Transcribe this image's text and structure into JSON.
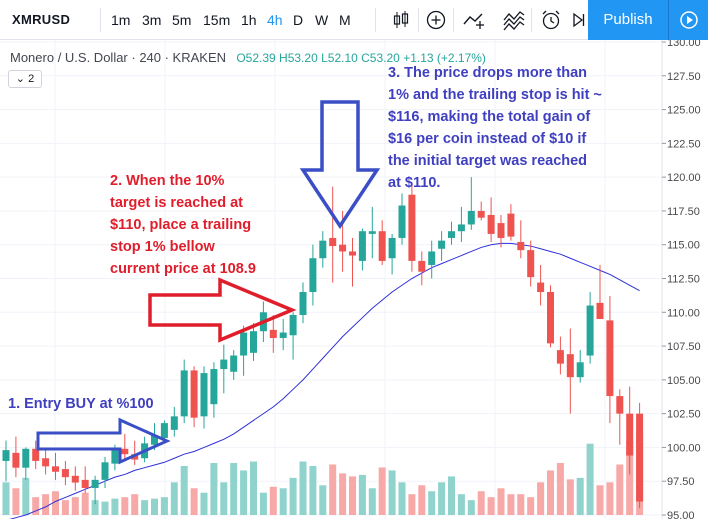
{
  "toolbar": {
    "symbol": "XMRUSD",
    "timeframes": [
      "1m",
      "3m",
      "5m",
      "15m",
      "1h",
      "4h",
      "D",
      "W",
      "M"
    ],
    "active_timeframe": "4h",
    "publish_label": "Publish",
    "icons": [
      "candles-icon",
      "add-indicator-icon",
      "compare-icon",
      "indicators-icon",
      "alert-icon",
      "replay-icon"
    ]
  },
  "legend": {
    "title": "Monero / U.S. Dollar · 240 · KRAKEN",
    "open": "O52.39",
    "high": "H53.20",
    "low": "L52.10",
    "close": "C53.20",
    "change": "+1.13 (+2.17%)",
    "collapse_label": "2"
  },
  "annotations": {
    "entry": [
      "1. Entry BUY at %100"
    ],
    "target": [
      "2. When the 10%",
      "target is reached at",
      "$110, place a trailing",
      "stop 1% bellow",
      "current price at 108.9"
    ],
    "stop": [
      "3. The price drops more than",
      "1% and the trailing stop is hit ~",
      "$116, making the total gain of",
      "$16 per coin instead of $10 if",
      "the initial target was reached",
      "at $110."
    ]
  },
  "colors": {
    "up": "#26a69a",
    "down": "#ef5350",
    "vol_up": "#8fd3cc",
    "vol_down": "#f7a9a8",
    "ma": "#2f2fd9",
    "arrow_blue": "#3a4fc5",
    "arrow_red": "#e01e2b",
    "accent": "#2196f3"
  },
  "chart_data": {
    "type": "candlestick",
    "y_ticks": [
      "130.00",
      "127.50",
      "125.00",
      "122.50",
      "120.00",
      "117.50",
      "115.00",
      "112.50",
      "110.00",
      "107.50",
      "105.00",
      "102.50",
      "100.00",
      "97.50",
      "95.00"
    ],
    "ylim": [
      95,
      130
    ],
    "candles": [
      {
        "o": 99.0,
        "h": 100.5,
        "l": 97.5,
        "c": 99.8
      },
      {
        "o": 99.6,
        "h": 100.8,
        "l": 97.8,
        "c": 98.5
      },
      {
        "o": 98.5,
        "h": 100.0,
        "l": 97.6,
        "c": 99.9
      },
      {
        "o": 99.9,
        "h": 100.5,
        "l": 98.4,
        "c": 99.0
      },
      {
        "o": 99.2,
        "h": 99.8,
        "l": 98.0,
        "c": 98.6
      },
      {
        "o": 98.6,
        "h": 99.6,
        "l": 97.6,
        "c": 98.2
      },
      {
        "o": 98.4,
        "h": 99.0,
        "l": 97.2,
        "c": 97.8
      },
      {
        "o": 97.9,
        "h": 98.6,
        "l": 96.8,
        "c": 97.4
      },
      {
        "o": 97.6,
        "h": 98.6,
        "l": 96.6,
        "c": 97.0
      },
      {
        "o": 97.0,
        "h": 97.9,
        "l": 95.8,
        "c": 97.6
      },
      {
        "o": 97.6,
        "h": 99.3,
        "l": 97.0,
        "c": 98.9
      },
      {
        "o": 98.8,
        "h": 100.2,
        "l": 98.3,
        "c": 99.9
      },
      {
        "o": 99.9,
        "h": 101.0,
        "l": 99.0,
        "c": 99.5
      },
      {
        "o": 99.5,
        "h": 100.5,
        "l": 98.7,
        "c": 99.1
      },
      {
        "o": 99.2,
        "h": 100.8,
        "l": 98.9,
        "c": 100.3
      },
      {
        "o": 100.2,
        "h": 101.8,
        "l": 99.8,
        "c": 100.9
      },
      {
        "o": 100.7,
        "h": 102.0,
        "l": 100.3,
        "c": 101.8
      },
      {
        "o": 101.3,
        "h": 103.0,
        "l": 100.8,
        "c": 102.3
      },
      {
        "o": 102.3,
        "h": 106.5,
        "l": 101.8,
        "c": 105.7
      },
      {
        "o": 105.7,
        "h": 106.0,
        "l": 101.5,
        "c": 102.2
      },
      {
        "o": 102.3,
        "h": 106.0,
        "l": 101.4,
        "c": 105.5
      },
      {
        "o": 103.2,
        "h": 106.3,
        "l": 102.2,
        "c": 105.8
      },
      {
        "o": 105.8,
        "h": 107.6,
        "l": 104.0,
        "c": 106.5
      },
      {
        "o": 105.6,
        "h": 107.2,
        "l": 105.0,
        "c": 106.8
      },
      {
        "o": 106.8,
        "h": 109.0,
        "l": 105.3,
        "c": 108.5
      },
      {
        "o": 107.0,
        "h": 109.2,
        "l": 106.4,
        "c": 108.6
      },
      {
        "o": 108.6,
        "h": 110.8,
        "l": 107.8,
        "c": 110.0
      },
      {
        "o": 108.7,
        "h": 109.8,
        "l": 107.0,
        "c": 108.1
      },
      {
        "o": 108.1,
        "h": 109.5,
        "l": 107.2,
        "c": 108.5
      },
      {
        "o": 108.3,
        "h": 110.0,
        "l": 106.5,
        "c": 109.8
      },
      {
        "o": 109.8,
        "h": 112.2,
        "l": 109.2,
        "c": 111.5
      },
      {
        "o": 111.5,
        "h": 115.0,
        "l": 110.5,
        "c": 114.0
      },
      {
        "o": 114.0,
        "h": 116.0,
        "l": 113.3,
        "c": 115.3
      },
      {
        "o": 115.5,
        "h": 119.3,
        "l": 112.2,
        "c": 114.9
      },
      {
        "o": 115.0,
        "h": 117.5,
        "l": 113.0,
        "c": 114.5
      },
      {
        "o": 114.5,
        "h": 115.5,
        "l": 111.9,
        "c": 114.2
      },
      {
        "o": 113.8,
        "h": 116.2,
        "l": 113.1,
        "c": 116.0
      },
      {
        "o": 115.8,
        "h": 117.8,
        "l": 114.0,
        "c": 116.0
      },
      {
        "o": 116.0,
        "h": 116.8,
        "l": 113.5,
        "c": 113.8
      },
      {
        "o": 114.0,
        "h": 115.8,
        "l": 112.8,
        "c": 115.5
      },
      {
        "o": 115.5,
        "h": 118.8,
        "l": 115.0,
        "c": 117.9
      },
      {
        "o": 118.7,
        "h": 119.5,
        "l": 113.0,
        "c": 113.8
      },
      {
        "o": 113.8,
        "h": 114.5,
        "l": 112.0,
        "c": 113.0
      },
      {
        "o": 113.5,
        "h": 115.3,
        "l": 112.5,
        "c": 114.5
      },
      {
        "o": 114.7,
        "h": 116.0,
        "l": 113.8,
        "c": 115.3
      },
      {
        "o": 115.5,
        "h": 116.7,
        "l": 115.0,
        "c": 116.0
      },
      {
        "o": 116.0,
        "h": 117.8,
        "l": 115.2,
        "c": 116.5
      },
      {
        "o": 116.5,
        "h": 120.0,
        "l": 116.1,
        "c": 117.5
      },
      {
        "o": 117.5,
        "h": 118.2,
        "l": 116.8,
        "c": 117.0
      },
      {
        "o": 117.2,
        "h": 118.5,
        "l": 115.2,
        "c": 115.8
      },
      {
        "o": 116.6,
        "h": 117.2,
        "l": 114.8,
        "c": 115.5
      },
      {
        "o": 117.3,
        "h": 118.0,
        "l": 115.3,
        "c": 115.6
      },
      {
        "o": 115.2,
        "h": 116.8,
        "l": 114.0,
        "c": 114.6
      },
      {
        "o": 114.6,
        "h": 115.3,
        "l": 111.9,
        "c": 112.6
      },
      {
        "o": 112.2,
        "h": 113.5,
        "l": 110.5,
        "c": 111.5
      },
      {
        "o": 111.5,
        "h": 112.0,
        "l": 107.4,
        "c": 107.7
      },
      {
        "o": 107.2,
        "h": 108.2,
        "l": 105.4,
        "c": 106.2
      },
      {
        "o": 106.9,
        "h": 108.8,
        "l": 102.5,
        "c": 105.2
      },
      {
        "o": 105.2,
        "h": 107.2,
        "l": 104.8,
        "c": 106.3
      },
      {
        "o": 106.8,
        "h": 111.5,
        "l": 106.2,
        "c": 110.5
      },
      {
        "o": 110.7,
        "h": 113.5,
        "l": 109.5,
        "c": 109.5
      },
      {
        "o": 109.4,
        "h": 111.2,
        "l": 101.8,
        "c": 103.8
      },
      {
        "o": 103.8,
        "h": 104.3,
        "l": 100.2,
        "c": 102.5
      },
      {
        "o": 102.5,
        "h": 104.5,
        "l": 98.0,
        "c": 99.4
      },
      {
        "o": 102.5,
        "h": 103.3,
        "l": 95.5,
        "c": 96.0
      }
    ],
    "ma": [
      94.6,
      94.8,
      95.0,
      95.3,
      95.6,
      96.0,
      96.3,
      96.6,
      96.9,
      97.2,
      97.5,
      97.8,
      98.0,
      98.3,
      98.5,
      98.7,
      98.9,
      99.2,
      99.5,
      99.7,
      100.0,
      100.3,
      100.6,
      101.0,
      101.5,
      102.0,
      102.5,
      103.0,
      103.6,
      104.3,
      105.0,
      105.8,
      106.6,
      107.4,
      108.2,
      108.9,
      109.6,
      110.3,
      110.9,
      111.5,
      112.0,
      112.5,
      112.9,
      113.3,
      113.6,
      113.9,
      114.2,
      114.5,
      114.8,
      115.0,
      115.1,
      115.1,
      115.0,
      114.9,
      114.7,
      114.5,
      114.3,
      114.0,
      113.7,
      113.4,
      113.1,
      112.8,
      112.4,
      112.0,
      111.6
    ],
    "volume": [
      0.22,
      0.18,
      0.25,
      0.12,
      0.14,
      0.16,
      0.1,
      0.12,
      0.15,
      0.1,
      0.09,
      0.11,
      0.12,
      0.14,
      0.1,
      0.11,
      0.12,
      0.22,
      0.33,
      0.18,
      0.15,
      0.35,
      0.22,
      0.35,
      0.3,
      0.36,
      0.15,
      0.19,
      0.18,
      0.25,
      0.36,
      0.33,
      0.2,
      0.34,
      0.28,
      0.26,
      0.27,
      0.18,
      0.32,
      0.3,
      0.22,
      0.14,
      0.2,
      0.16,
      0.22,
      0.26,
      0.14,
      0.1,
      0.16,
      0.12,
      0.18,
      0.14,
      0.14,
      0.12,
      0.22,
      0.3,
      0.35,
      0.24,
      0.25,
      0.48,
      0.2,
      0.22,
      0.34,
      0.5,
      0.56
    ]
  }
}
